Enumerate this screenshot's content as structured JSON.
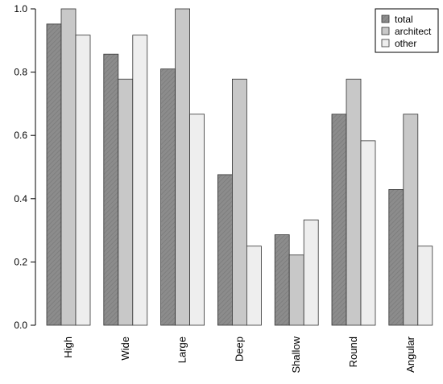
{
  "chart_data": {
    "type": "bar",
    "categories": [
      "High",
      "Wide",
      "Large",
      "Deep",
      "Shallow",
      "Round",
      "Angular"
    ],
    "series": [
      {
        "name": "total",
        "color": "#8c8c8c",
        "hatched": true,
        "values": [
          0.952,
          0.857,
          0.81,
          0.476,
          0.286,
          0.667,
          0.429
        ]
      },
      {
        "name": "architect",
        "color": "#c8c8c8",
        "hatched": false,
        "values": [
          1.0,
          0.778,
          1.0,
          0.778,
          0.222,
          0.778,
          0.667
        ]
      },
      {
        "name": "other",
        "color": "#eeeeee",
        "hatched": false,
        "values": [
          0.917,
          0.917,
          0.667,
          0.25,
          0.333,
          0.583,
          0.25
        ]
      }
    ],
    "ylim": [
      0,
      1.0
    ],
    "yticks": [
      "0.0",
      "0.2",
      "0.4",
      "0.6",
      "0.8",
      "1.0"
    ],
    "legend_position": "top-right",
    "grid": false
  }
}
